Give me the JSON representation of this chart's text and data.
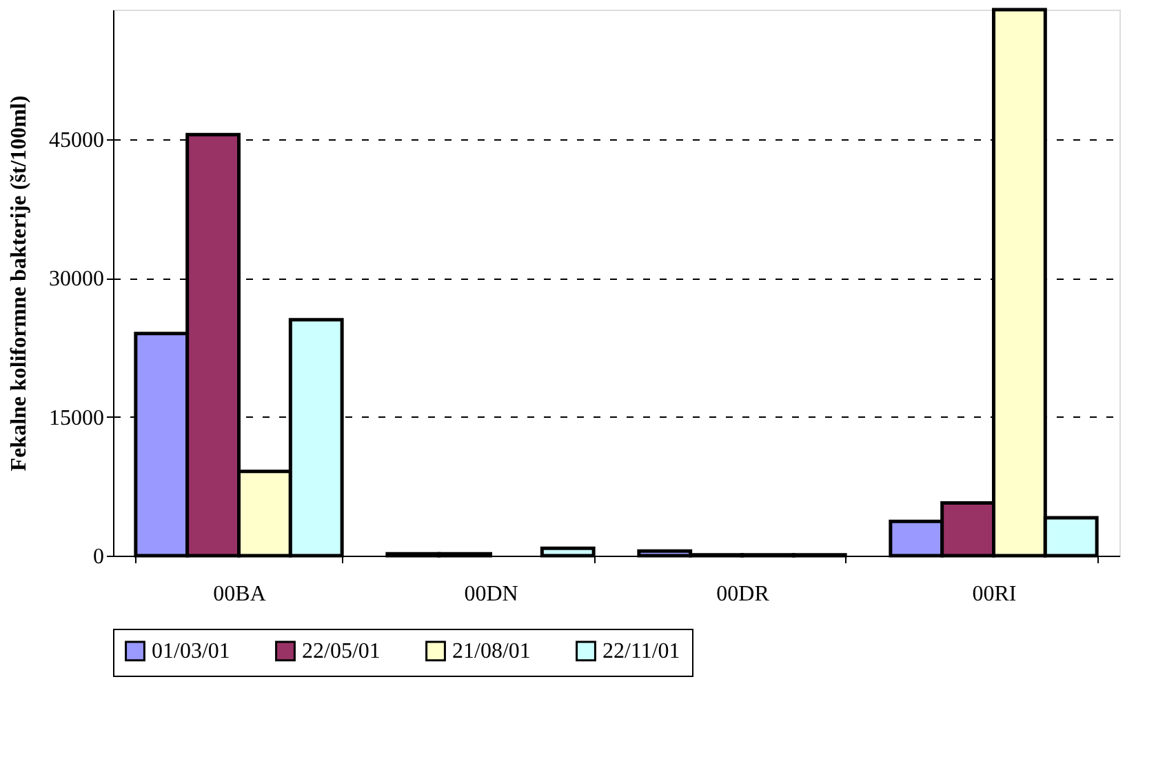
{
  "chart_data": {
    "type": "bar",
    "ylabel": "Fekalne koliformne bakterije (št/100ml)",
    "categories": [
      "00BA",
      "00DN",
      "00DR",
      "00RI"
    ],
    "series": [
      {
        "name": "01/03/01",
        "color": "#9999ff",
        "values": [
          24000,
          200,
          500,
          3700
        ]
      },
      {
        "name": "22/05/01",
        "color": "#993366",
        "values": [
          45500,
          200,
          100,
          5700
        ]
      },
      {
        "name": "21/08/01",
        "color": "#ffffcc",
        "values": [
          9100,
          null,
          100,
          59000
        ]
      },
      {
        "name": "22/11/01",
        "color": "#ccffff",
        "values": [
          25500,
          800,
          100,
          4100
        ]
      }
    ],
    "ylim": [
      0,
      59000
    ],
    "yticks": [
      0,
      15000,
      30000,
      45000
    ],
    "grid": "y",
    "legend": "bottom"
  }
}
